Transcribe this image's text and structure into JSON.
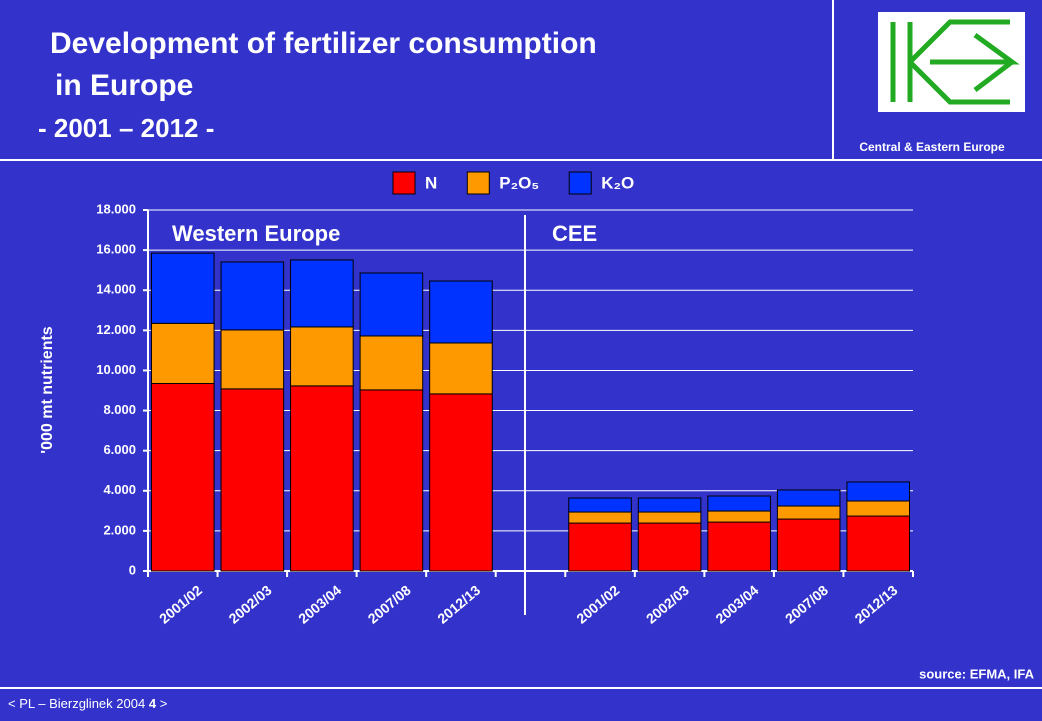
{
  "chart_data": {
    "type": "stacked_bar",
    "title": [
      "Development of fertilizer consumption",
      "in Europe"
    ],
    "subtitle": "- 2001 – 2012 -",
    "y_label": "'000 mt nutrients",
    "annotations": [
      "Western Europe",
      "CEE"
    ],
    "source": "source: EFMA, IFA",
    "categories": [
      "2001/02",
      "2002/03",
      "2003/04",
      "2007/08",
      "2012/13",
      null,
      "2001/02",
      "2002/03",
      "2003/04",
      "2007/08",
      "2012/13"
    ],
    "series": [
      {
        "name": "N",
        "color": "#ff0000",
        "values": [
          9350,
          9080,
          9230,
          9030,
          8830,
          null,
          2390,
          2390,
          2440,
          2590,
          2740
        ]
      },
      {
        "name": "P₂O₅",
        "color": "#ff9900",
        "values": [
          3000,
          2940,
          2940,
          2690,
          2540,
          null,
          550,
          550,
          550,
          650,
          750
        ]
      },
      {
        "name": "K₂O",
        "color": "#0033ff",
        "values": [
          3500,
          3390,
          3340,
          3140,
          3090,
          null,
          700,
          700,
          750,
          800,
          950
        ]
      }
    ],
    "ylim": [
      0,
      18000
    ],
    "yticks": [
      {
        "value": 0,
        "label": "0"
      },
      {
        "value": 2000,
        "label": "2.000"
      },
      {
        "value": 4000,
        "label": "4.000"
      },
      {
        "value": 6000,
        "label": "6.000"
      },
      {
        "value": 8000,
        "label": "8.000"
      },
      {
        "value": 10000,
        "label": "10.000"
      },
      {
        "value": 12000,
        "label": "12.000"
      },
      {
        "value": 14000,
        "label": "14.000"
      },
      {
        "value": 16000,
        "label": "16.000"
      },
      {
        "value": 18000,
        "label": "18.000"
      }
    ],
    "grid": true,
    "legend": "top"
  },
  "logo_caption": "Central & Eastern Europe",
  "footer": {
    "text": "< PL – Bierzglinek 2004",
    "page": "4",
    "end": ">"
  }
}
